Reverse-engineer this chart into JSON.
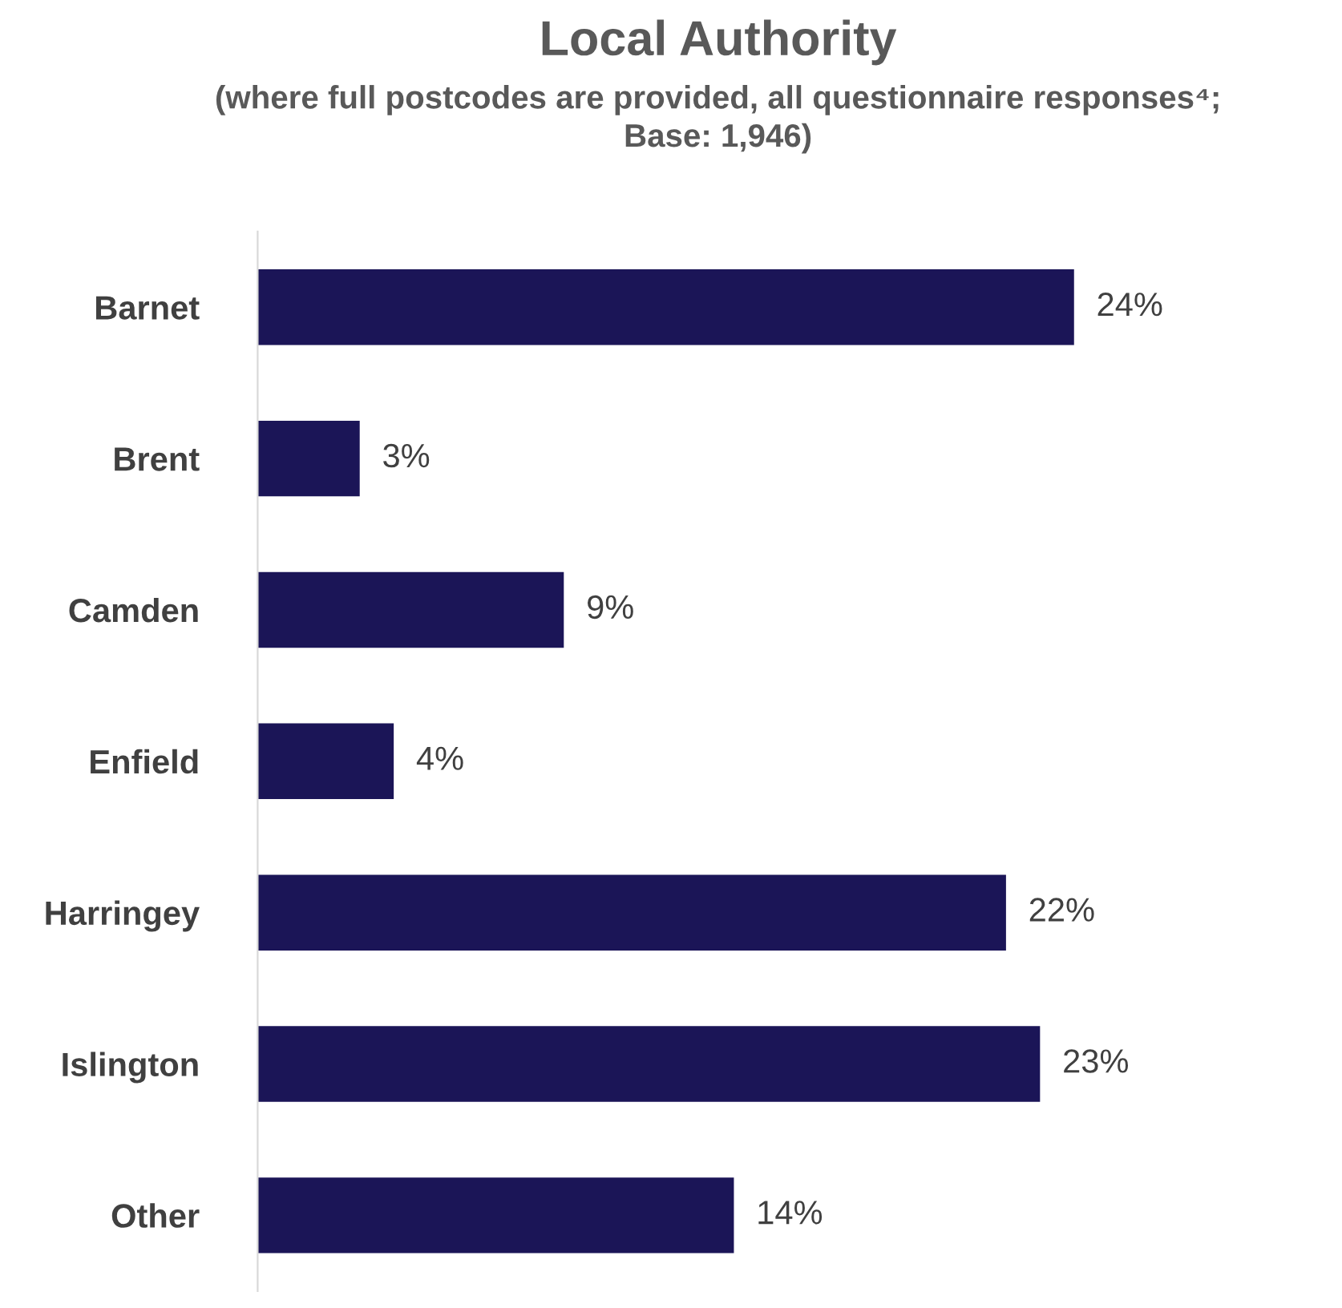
{
  "chart_data": {
    "type": "bar",
    "orientation": "horizontal",
    "title": "Local Authority",
    "subtitle": "(where full postcodes are provided, all questionnaire responses⁴;\nBase: 1,946)",
    "categories": [
      "Barnet",
      "Brent",
      "Camden",
      "Enfield",
      "Harringey",
      "Islington",
      "Other"
    ],
    "values": [
      24,
      3,
      9,
      4,
      22,
      23,
      14
    ],
    "value_labels": [
      "24%",
      "3%",
      "9%",
      "4%",
      "22%",
      "23%",
      "14%"
    ],
    "color": "#1b1557",
    "grid": false,
    "legend": false
  }
}
